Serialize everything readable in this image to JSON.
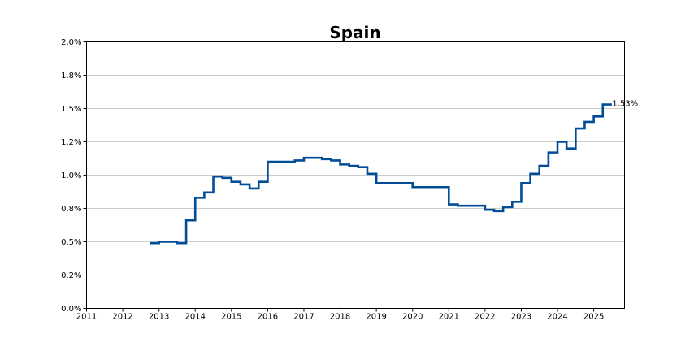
{
  "chart_data": {
    "type": "line",
    "step": true,
    "title": "Spain",
    "xlabel": "",
    "ylabel": "",
    "x_range": [
      2011.0,
      2025.85
    ],
    "ylim": [
      0,
      2.0
    ],
    "grid": "horizontal",
    "color": "#004c97",
    "x_ticks": [
      "2011",
      "2012",
      "2013",
      "2014",
      "2015",
      "2016",
      "2017",
      "2018",
      "2019",
      "2020",
      "2021",
      "2022",
      "2023",
      "2024",
      "2025"
    ],
    "y_ticks": [
      "0.0%",
      "0.2%",
      "0.5%",
      "0.8%",
      "1.0%",
      "1.2%",
      "1.5%",
      "1.8%",
      "2.0%"
    ],
    "end_label": "1.53%",
    "series": [
      {
        "x": [
          2012.75,
          2013.0,
          2013.5,
          2013.75,
          2014.0,
          2014.25,
          2014.5,
          2014.75,
          2015.0,
          2015.25,
          2015.5,
          2015.75,
          2016.0,
          2016.5,
          2016.75,
          2017.0,
          2017.5,
          2017.75,
          2018.0,
          2018.25,
          2018.5,
          2018.75,
          2019.0,
          2019.25,
          2019.5,
          2019.75,
          2020.0,
          2020.25,
          2020.5,
          2020.75,
          2021.0,
          2021.25,
          2021.5,
          2021.75,
          2022.0,
          2022.25,
          2022.5,
          2022.75,
          2023.0,
          2023.25,
          2023.5,
          2023.75,
          2024.0,
          2024.25,
          2024.5,
          2024.75,
          2025.0,
          2025.25
        ],
        "y": [
          0.49,
          0.5,
          0.49,
          0.66,
          0.83,
          0.87,
          0.99,
          0.98,
          0.95,
          0.93,
          0.9,
          0.95,
          1.1,
          1.1,
          1.11,
          1.13,
          1.12,
          1.11,
          1.08,
          1.07,
          1.06,
          1.01,
          0.94,
          0.94,
          0.94,
          0.94,
          0.91,
          0.91,
          0.91,
          0.91,
          0.78,
          0.77,
          0.77,
          0.77,
          0.74,
          0.73,
          0.76,
          0.8,
          0.94,
          1.01,
          1.07,
          1.17,
          1.25,
          1.2,
          1.35,
          1.4,
          1.44,
          1.53
        ]
      }
    ]
  }
}
